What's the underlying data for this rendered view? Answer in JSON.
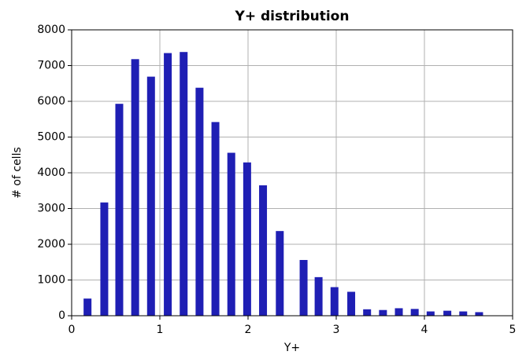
{
  "chart_data": {
    "type": "bar",
    "title": "Y+ distribution",
    "x_label": "Y+",
    "y_label": "# of cells",
    "x": [
      0.18,
      0.37,
      0.54,
      0.72,
      0.9,
      1.09,
      1.27,
      1.45,
      1.63,
      1.81,
      1.99,
      2.17,
      2.36,
      2.63,
      2.8,
      2.98,
      3.17,
      3.35,
      3.53,
      3.71,
      3.89,
      4.07,
      4.26,
      4.44,
      4.62
    ],
    "values": [
      480,
      3170,
      5930,
      7180,
      6690,
      7350,
      7380,
      6380,
      5420,
      4560,
      4290,
      3650,
      2370,
      1560,
      1080,
      800,
      670,
      180,
      160,
      210,
      190,
      120,
      140,
      120,
      100
    ],
    "color": "#1f1fb4",
    "xlim": [
      0,
      5
    ],
    "xticks": [
      0,
      1,
      2,
      3,
      4,
      5
    ],
    "ylim": [
      0,
      8000
    ],
    "yticks": [
      0,
      1000,
      2000,
      3000,
      4000,
      5000,
      6000,
      7000,
      8000
    ],
    "grid": true
  }
}
